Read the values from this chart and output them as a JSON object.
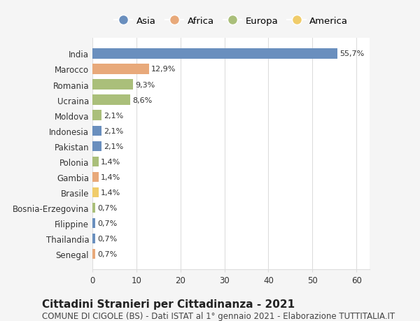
{
  "categories": [
    "India",
    "Marocco",
    "Romania",
    "Ucraina",
    "Moldova",
    "Indonesia",
    "Pakistan",
    "Polonia",
    "Gambia",
    "Brasile",
    "Bosnia-Erzegovina",
    "Filippine",
    "Thailandia",
    "Senegal"
  ],
  "values": [
    55.7,
    12.9,
    9.3,
    8.6,
    2.1,
    2.1,
    2.1,
    1.4,
    1.4,
    1.4,
    0.7,
    0.7,
    0.7,
    0.7
  ],
  "labels": [
    "55,7%",
    "12,9%",
    "9,3%",
    "8,6%",
    "2,1%",
    "2,1%",
    "2,1%",
    "1,4%",
    "1,4%",
    "1,4%",
    "0,7%",
    "0,7%",
    "0,7%",
    "0,7%"
  ],
  "continents": [
    "Asia",
    "Africa",
    "Europa",
    "Europa",
    "Europa",
    "Asia",
    "Asia",
    "Europa",
    "Africa",
    "America",
    "Europa",
    "Asia",
    "Asia",
    "Africa"
  ],
  "continent_colors": {
    "Asia": "#6a8fbe",
    "Africa": "#e8a97a",
    "Europa": "#aabf7a",
    "America": "#f0cc6a"
  },
  "legend_order": [
    "Asia",
    "Africa",
    "Europa",
    "America"
  ],
  "title": "Cittadini Stranieri per Cittadinanza - 2021",
  "subtitle": "COMUNE DI CIGOLE (BS) - Dati ISTAT al 1° gennaio 2021 - Elaborazione TUTTITALIA.IT",
  "xlabel_ticks": [
    0,
    10,
    20,
    30,
    40,
    50,
    60
  ],
  "bg_color": "#f5f5f5",
  "plot_bg_color": "#ffffff",
  "grid_color": "#dddddd",
  "title_fontsize": 11,
  "subtitle_fontsize": 8.5,
  "label_fontsize": 8,
  "tick_fontsize": 8.5
}
